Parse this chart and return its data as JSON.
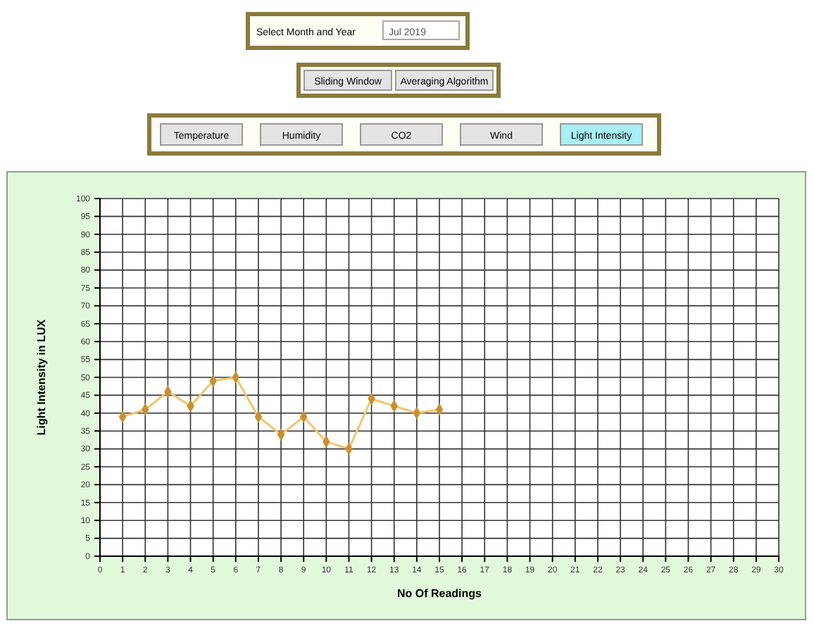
{
  "chart_data": {
    "type": "line",
    "xlabel": "No Of Readings",
    "ylabel": "Light Intensity in LUX",
    "x": [
      1,
      2,
      3,
      4,
      5,
      6,
      7,
      8,
      9,
      10,
      11,
      12,
      13,
      14,
      15
    ],
    "series": [
      {
        "color": "#f5c46e",
        "values": [
          39,
          41,
          46,
          42,
          49,
          50,
          39,
          34,
          39,
          32,
          30,
          44,
          42,
          40,
          41
        ]
      }
    ],
    "xlim": [
      0,
      30
    ],
    "xticks": [
      0,
      1,
      2,
      3,
      4,
      5,
      6,
      7,
      8,
      9,
      10,
      11,
      12,
      13,
      14,
      15,
      16,
      17,
      18,
      19,
      20,
      21,
      22,
      23,
      24,
      25,
      26,
      27,
      28,
      29,
      30
    ],
    "ylim": [
      0,
      100
    ],
    "yticks": [
      0,
      5,
      10,
      15,
      20,
      25,
      30,
      35,
      40,
      45,
      50,
      55,
      60,
      65,
      70,
      75,
      80,
      85,
      90,
      95,
      100
    ],
    "grid": true,
    "marker": "diamond",
    "line_style": "solid",
    "annotations": [
      "Select Month and Year",
      "Jul 2019",
      "Sliding Window",
      "Averaging Algorithm",
      "Temperature",
      "Humidity",
      "CO2",
      "Wind",
      "Light Intensity"
    ]
  }
}
